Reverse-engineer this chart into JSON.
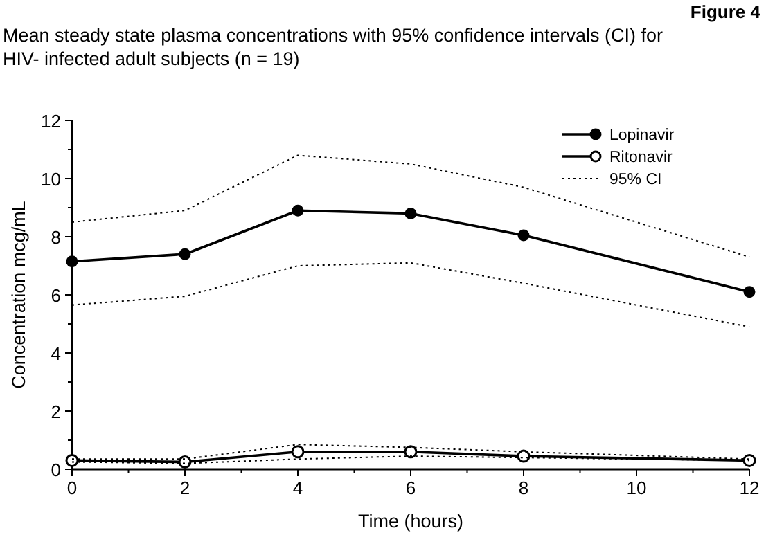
{
  "chart_data": {
    "type": "line",
    "title": "Mean steady state plasma concentrations with 95% confidence intervals (CI) for HIV- infected adult subjects (n = 19)",
    "annotations": [
      "Figure 4"
    ],
    "xlabel": "Time (hours)",
    "ylabel": "Concentration mcg/mL",
    "x": [
      0,
      2,
      4,
      6,
      8,
      12
    ],
    "xlim": [
      0,
      12
    ],
    "ylim": [
      0,
      12
    ],
    "xticks": [
      0,
      {
        "value": 1,
        "label": null
      },
      2,
      {
        "value": 3,
        "label": null
      },
      4,
      {
        "value": 5,
        "label": null
      },
      6,
      {
        "value": 7,
        "label": null
      },
      8,
      {
        "value": 9,
        "label": null
      },
      10,
      {
        "value": 11,
        "label": null
      },
      12
    ],
    "yticks": [
      0,
      {
        "value": 1,
        "label": null
      },
      2,
      {
        "value": 3,
        "label": null
      },
      4,
      {
        "value": 5,
        "label": null
      },
      6,
      {
        "value": 7,
        "label": null
      },
      8,
      {
        "value": 9,
        "label": null
      },
      10,
      {
        "value": 11,
        "label": null
      },
      12
    ],
    "legend": "top right",
    "grid": false,
    "series": [
      {
        "name": "Lopinavir",
        "color": "#000000",
        "marker": "circle",
        "line_style": "solid",
        "values": [
          7.15,
          7.4,
          8.9,
          8.8,
          8.05,
          6.1
        ]
      },
      {
        "name": "Ritonavir",
        "color": "#000000",
        "marker": "circle-open",
        "line_style": "solid",
        "values": [
          0.3,
          0.25,
          0.6,
          0.6,
          0.45,
          0.3
        ]
      },
      {
        "name": "95% CI",
        "color": "#000000",
        "marker": "none",
        "line_style": "dotted",
        "values": [
          8.5,
          8.9,
          10.8,
          10.5,
          9.7,
          7.3
        ]
      },
      {
        "color": "#000000",
        "marker": "none",
        "line_style": "dotted",
        "values": [
          5.65,
          5.95,
          7.0,
          7.1,
          6.4,
          4.9
        ]
      },
      {
        "color": "#000000",
        "marker": "none",
        "line_style": "dotted",
        "values": [
          0.35,
          0.35,
          0.85,
          0.75,
          0.6,
          0.35
        ]
      },
      {
        "color": "#000000",
        "marker": "none",
        "line_style": "dotted",
        "values": [
          0.25,
          0.2,
          0.35,
          0.45,
          0.4,
          0.3
        ]
      }
    ]
  }
}
